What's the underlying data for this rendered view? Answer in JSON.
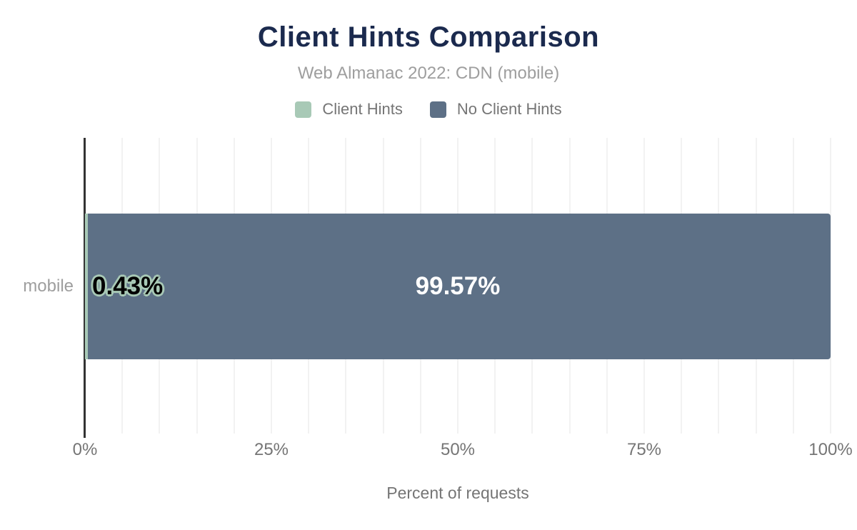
{
  "header": {
    "title": "Client Hints Comparison",
    "subtitle": "Web Almanac 2022: CDN (mobile)"
  },
  "legend": {
    "items": [
      {
        "label": "Client Hints",
        "color": "#a8c9b6"
      },
      {
        "label": "No Client Hints",
        "color": "#5d7086"
      }
    ]
  },
  "chart_data": {
    "type": "bar",
    "orientation": "horizontal",
    "stacked": true,
    "title": "Client Hints Comparison",
    "subtitle": "Web Almanac 2022: CDN (mobile)",
    "categories": [
      "mobile"
    ],
    "series": [
      {
        "name": "Client Hints",
        "values": [
          0.43
        ],
        "label": "0.43%",
        "color": "#a8c9b6"
      },
      {
        "name": "No Client Hints",
        "values": [
          99.57
        ],
        "label": "99.57%",
        "color": "#5d7086"
      }
    ],
    "xlabel": "Percent of requests",
    "ylabel": "",
    "xlim": [
      0,
      100
    ],
    "x_tick_values": [
      0,
      25,
      50,
      75,
      100
    ],
    "x_tick_labels": [
      "0%",
      "25%",
      "50%",
      "75%",
      "100%"
    ],
    "gridline_step": 5,
    "grid": true,
    "legend_position": "top"
  },
  "colors": {
    "title_text": "#1b2a4e",
    "subtitle_text": "#9e9e9e",
    "axis_text": "#757575",
    "category_text": "#9e9e9e",
    "gridline": "#f2f2f2",
    "axis_line": "#333333",
    "value_label_on_dark": "#ffffff",
    "value_label_on_light": "#000000",
    "background": "#ffffff"
  }
}
